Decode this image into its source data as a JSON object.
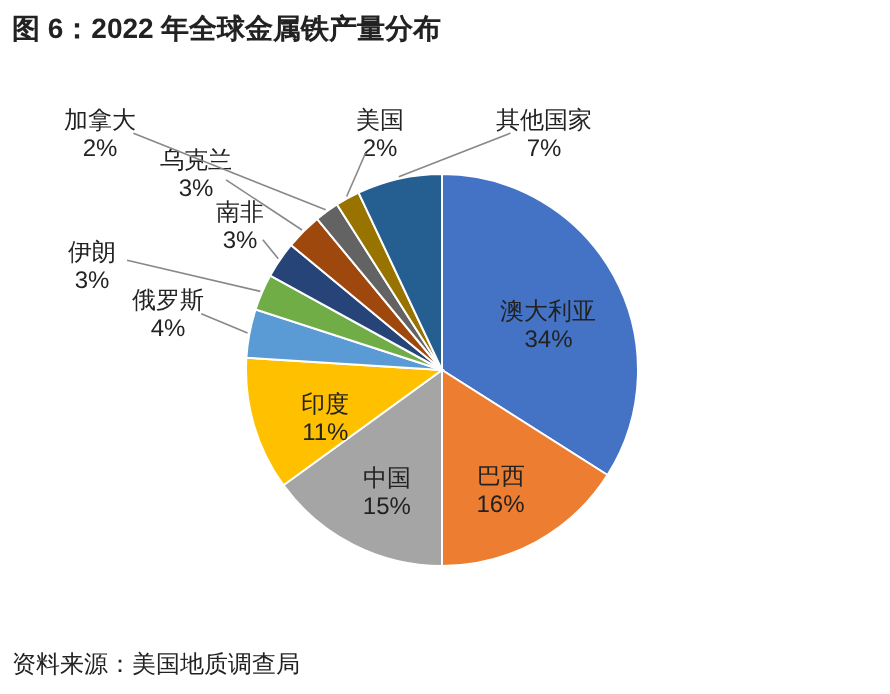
{
  "chart_data": {
    "type": "pie",
    "title": "图 6：2022 年全球金属铁产量分布",
    "categories": [
      "澳大利亚",
      "巴西",
      "中国",
      "印度",
      "俄罗斯",
      "伊朗",
      "南非",
      "乌克兰",
      "加拿大",
      "美国",
      "其他国家"
    ],
    "values": [
      34,
      16,
      15,
      11,
      4,
      3,
      3,
      3,
      2,
      2,
      7
    ],
    "value_labels": [
      "34%",
      "16%",
      "15%",
      "11%",
      "4%",
      "3%",
      "3%",
      "3%",
      "2%",
      "2%",
      "7%"
    ],
    "colors": [
      "#4472c4",
      "#ed7d31",
      "#a5a5a5",
      "#ffc000",
      "#5b9bd5",
      "#70ad47",
      "#264478",
      "#9e480e",
      "#636363",
      "#997300",
      "#255e91"
    ],
    "annotations": [
      "资料来源：美国地质调查局"
    ]
  }
}
